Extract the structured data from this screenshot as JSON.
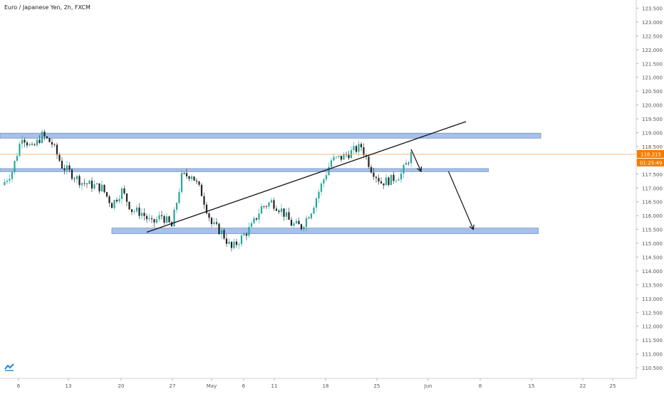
{
  "chart_data": {
    "type": "candlestick",
    "title": "Euro / Japanese Yen, 2h, FXCM",
    "y_ticks": [
      "123.500",
      "123.000",
      "122.500",
      "122.000",
      "121.500",
      "121.000",
      "120.500",
      "120.000",
      "119.500",
      "119.000",
      "118.500",
      "118.000",
      "117.500",
      "117.000",
      "116.500",
      "116.000",
      "115.500",
      "115.000",
      "114.500",
      "114.000",
      "113.500",
      "113.000",
      "112.500",
      "112.000",
      "111.500",
      "111.000",
      "110.500"
    ],
    "x_ticks": [
      "6",
      "13",
      "20",
      "27",
      "May",
      "6",
      "11",
      "18",
      "25",
      "Jun",
      "8",
      "15",
      "22",
      "25"
    ],
    "ylim": [
      110.2,
      123.7
    ],
    "current_price": "118.215",
    "countdown": "01:25:49",
    "price_path": [
      {
        "d": 0,
        "p": 117.1
      },
      {
        "d": 2,
        "p": 117.6
      },
      {
        "d": 4,
        "p": 118.9
      },
      {
        "d": 6,
        "p": 118.4
      },
      {
        "d": 8,
        "p": 118.9
      },
      {
        "d": 10,
        "p": 118.6
      },
      {
        "d": 12,
        "p": 117.8
      },
      {
        "d": 14,
        "p": 117.5
      },
      {
        "d": 16,
        "p": 117.2
      },
      {
        "d": 18,
        "p": 117.1
      },
      {
        "d": 20,
        "p": 117.0
      },
      {
        "d": 22,
        "p": 116.4
      },
      {
        "d": 24,
        "p": 116.9
      },
      {
        "d": 26,
        "p": 116.2
      },
      {
        "d": 28,
        "p": 116.1
      },
      {
        "d": 30,
        "p": 115.7
      },
      {
        "d": 32,
        "p": 116.0
      },
      {
        "d": 34,
        "p": 115.6
      },
      {
        "d": 36,
        "p": 117.4
      },
      {
        "d": 38,
        "p": 117.5
      },
      {
        "d": 40,
        "p": 116.8
      },
      {
        "d": 42,
        "p": 115.7
      },
      {
        "d": 44,
        "p": 115.4
      },
      {
        "d": 46,
        "p": 114.8
      },
      {
        "d": 48,
        "p": 115.2
      },
      {
        "d": 50,
        "p": 115.6
      },
      {
        "d": 52,
        "p": 116.3
      },
      {
        "d": 54,
        "p": 116.5
      },
      {
        "d": 56,
        "p": 116.2
      },
      {
        "d": 58,
        "p": 115.7
      },
      {
        "d": 60,
        "p": 115.6
      },
      {
        "d": 62,
        "p": 116.2
      },
      {
        "d": 64,
        "p": 117.1
      },
      {
        "d": 66,
        "p": 118.0
      },
      {
        "d": 68,
        "p": 118.1
      },
      {
        "d": 70,
        "p": 118.3
      },
      {
        "d": 72,
        "p": 118.5
      },
      {
        "d": 74,
        "p": 117.7
      },
      {
        "d": 76,
        "p": 117.2
      },
      {
        "d": 78,
        "p": 117.3
      },
      {
        "d": 80,
        "p": 117.5
      },
      {
        "d": 82,
        "p": 118.2
      }
    ],
    "zones": [
      {
        "name": "resistance-zone",
        "low": 118.8,
        "high": 118.98,
        "d0": -4,
        "d1": 108
      },
      {
        "name": "middle-zone",
        "low": 117.59,
        "high": 117.7,
        "d0": -4,
        "d1": 97.5
      },
      {
        "name": "support-zone",
        "low": 115.35,
        "high": 115.55,
        "d0": 22,
        "d1": 107.5
      }
    ],
    "trendline": {
      "d0": 29,
      "p0": 115.4,
      "d1": 93,
      "p1": 119.4
    },
    "arrows": [
      {
        "d0": 82,
        "p0": 118.4,
        "d1": 84,
        "p1": 117.6
      },
      {
        "d0": 89.5,
        "p0": 117.6,
        "d1": 94.5,
        "p1": 115.5
      }
    ],
    "colors": {
      "up": "#26a69a",
      "down": "#222222",
      "zone_fill": "#a9c1e8",
      "zone_stroke": "#6f8fc9",
      "price_line": "#f7a35c",
      "price_label": "#f57c00"
    }
  }
}
